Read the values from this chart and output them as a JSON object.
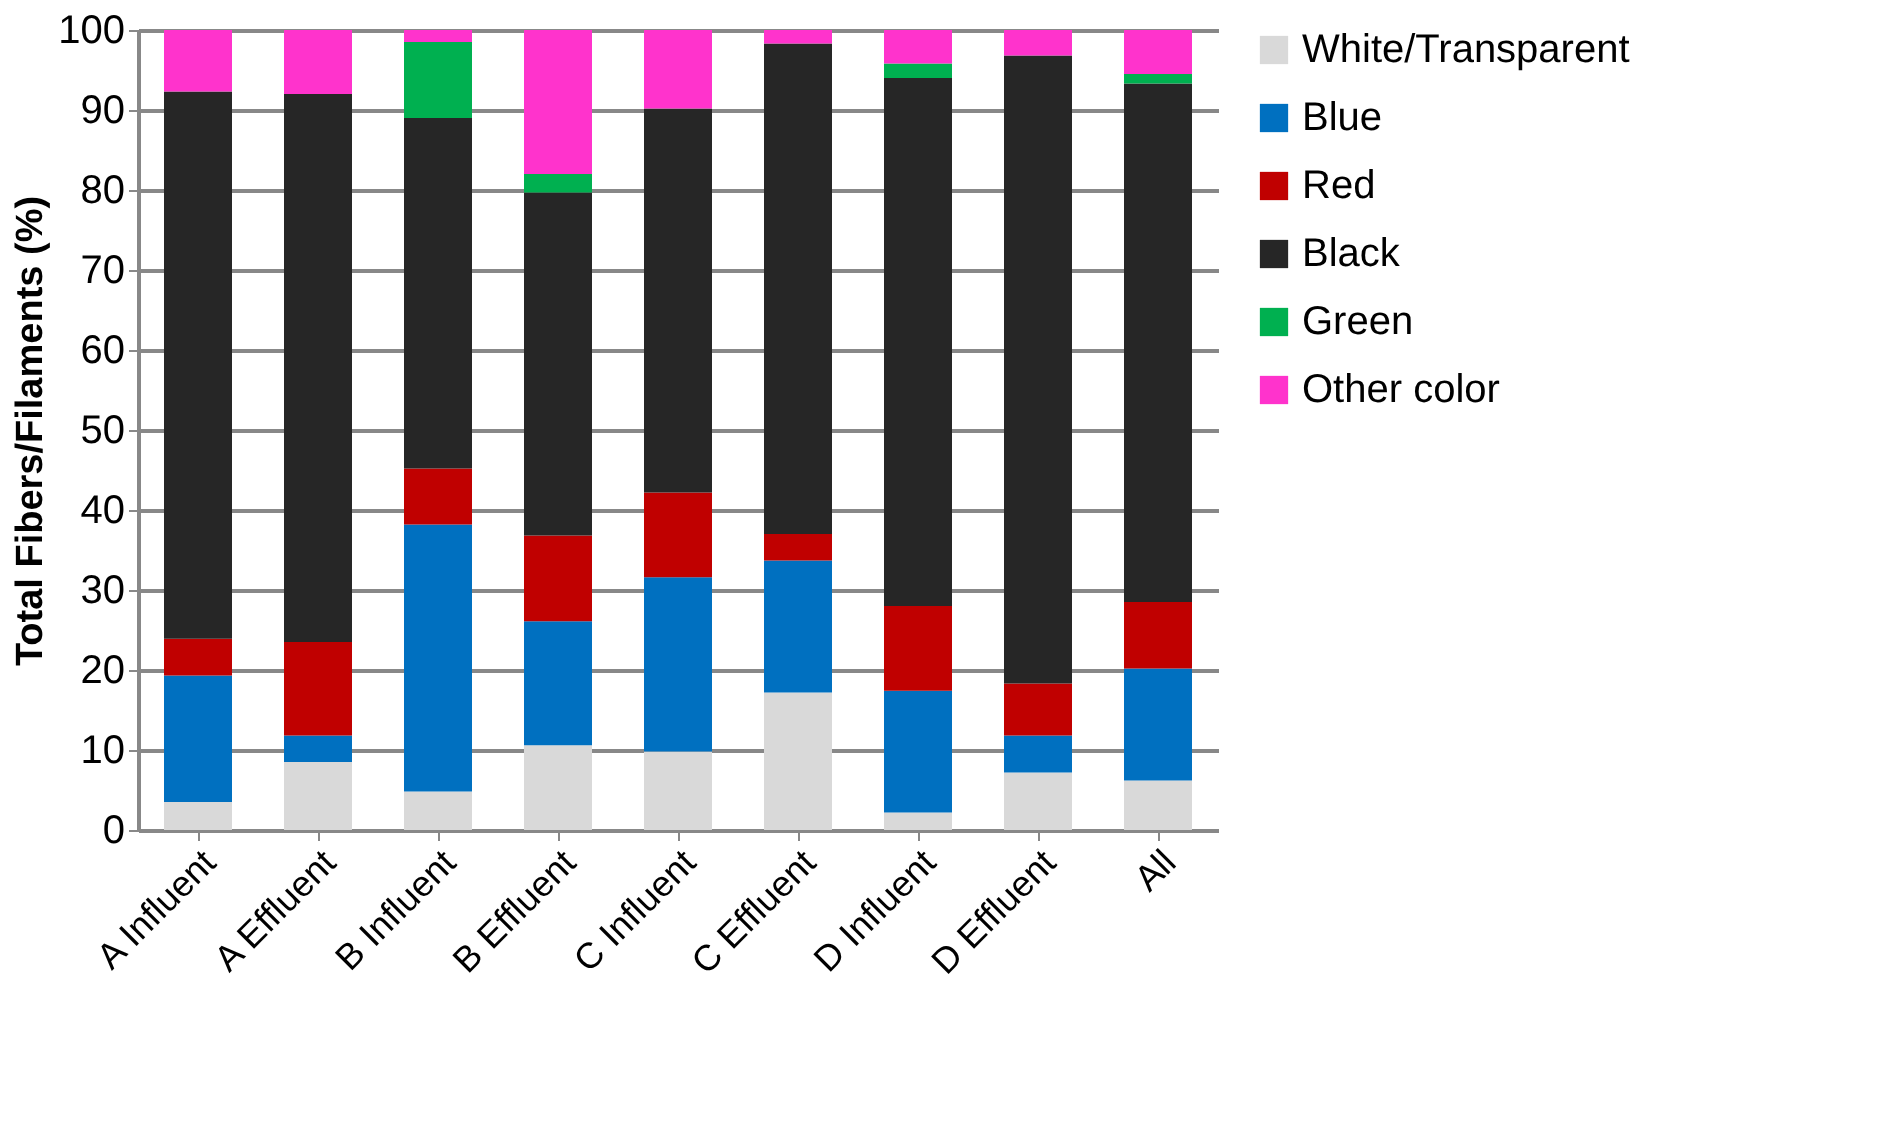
{
  "chart_data": {
    "type": "bar",
    "stacked": true,
    "ylabel": "Total Fibers/Filaments (%)",
    "categories": [
      "A Influent",
      "A Effluent",
      "B Influent",
      "B Effluent",
      "C Influent",
      "C Effluent",
      "D Influent",
      "D Effluent",
      "All"
    ],
    "series": [
      {
        "name": "White/Transparent",
        "color": "#d9d9d9",
        "values": [
          3.5,
          8.5,
          4.8,
          10.6,
          9.8,
          17.2,
          2.2,
          7.2,
          6.2
        ]
      },
      {
        "name": "Blue",
        "color": "#0070c0",
        "values": [
          15.8,
          3.3,
          33.4,
          15.5,
          21.8,
          16.5,
          15.2,
          4.6,
          14.0
        ]
      },
      {
        "name": "Red",
        "color": "#c00000",
        "values": [
          4.6,
          11.7,
          7.0,
          10.7,
          10.6,
          3.3,
          10.6,
          6.5,
          8.3
        ]
      },
      {
        "name": "Black",
        "color": "#262626",
        "values": [
          68.4,
          68.5,
          43.8,
          42.9,
          48.0,
          61.3,
          66.0,
          78.5,
          64.8
        ]
      },
      {
        "name": "Green",
        "color": "#00b050",
        "values": [
          0,
          0,
          9.5,
          2.3,
          0,
          0,
          1.8,
          0,
          1.2
        ]
      },
      {
        "name": "Other color",
        "color": "#ff33cc",
        "values": [
          7.7,
          8.0,
          1.5,
          18.0,
          9.8,
          1.7,
          4.2,
          3.2,
          5.5
        ]
      }
    ],
    "ylim": [
      0,
      100
    ],
    "yticks": [
      0,
      10,
      20,
      30,
      40,
      50,
      60,
      70,
      80,
      90,
      100
    ],
    "grid": "y",
    "legend": "right"
  }
}
